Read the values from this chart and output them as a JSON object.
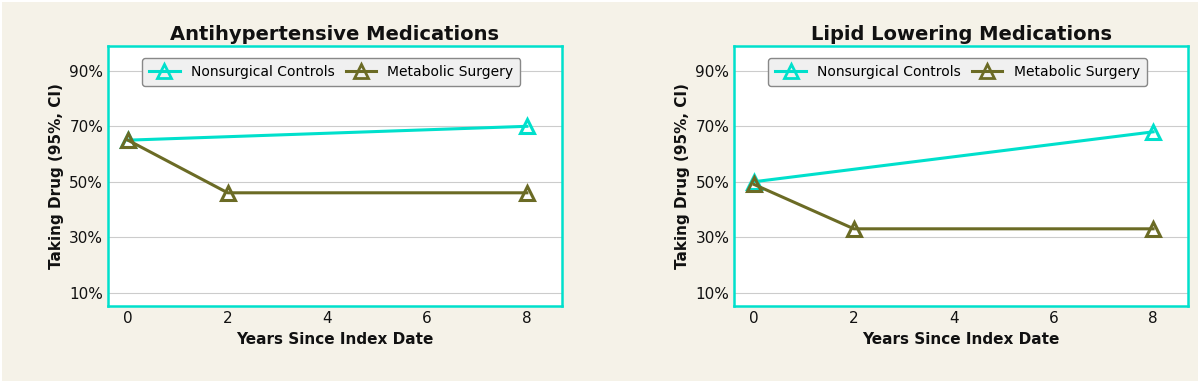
{
  "background_color": "#f5f2e8",
  "plot_bg_color": "#ffffff",
  "outer_border_color": "#aaaaaa",
  "plot_border_color": "#00e0cc",
  "left_chart": {
    "title": "Antihypertensive Medications",
    "nonsurgical": {
      "x": [
        0,
        8
      ],
      "y": [
        0.65,
        0.7
      ]
    },
    "metabolic": {
      "x": [
        0,
        2,
        8
      ],
      "y": [
        0.65,
        0.46,
        0.46
      ]
    }
  },
  "right_chart": {
    "title": "Lipid Lowering Medications",
    "nonsurgical": {
      "x": [
        0,
        8
      ],
      "y": [
        0.5,
        0.68
      ]
    },
    "metabolic": {
      "x": [
        0,
        2,
        8
      ],
      "y": [
        0.49,
        0.33,
        0.33
      ]
    }
  },
  "ylabel": "Taking Drug (95%, CI)",
  "xlabel": "Years Since Index Date",
  "yticks": [
    0.1,
    0.3,
    0.5,
    0.7,
    0.9
  ],
  "ytick_labels": [
    "10%",
    "30%",
    "50%",
    "70%",
    "90%"
  ],
  "xticks": [
    0,
    2,
    4,
    6,
    8
  ],
  "xlim": [
    -0.4,
    8.7
  ],
  "ylim": [
    0.05,
    0.99
  ],
  "nonsurgical_color": "#00e0cc",
  "metabolic_color": "#6b6b25",
  "title_fontsize": 14,
  "label_fontsize": 11,
  "tick_fontsize": 11,
  "legend_fontsize": 10,
  "linewidth": 2.2,
  "marker": "^",
  "markersize": 10,
  "legend_label_nonsurgical": "Nonsurgical Controls",
  "legend_label_metabolic": "Metabolic Surgery"
}
